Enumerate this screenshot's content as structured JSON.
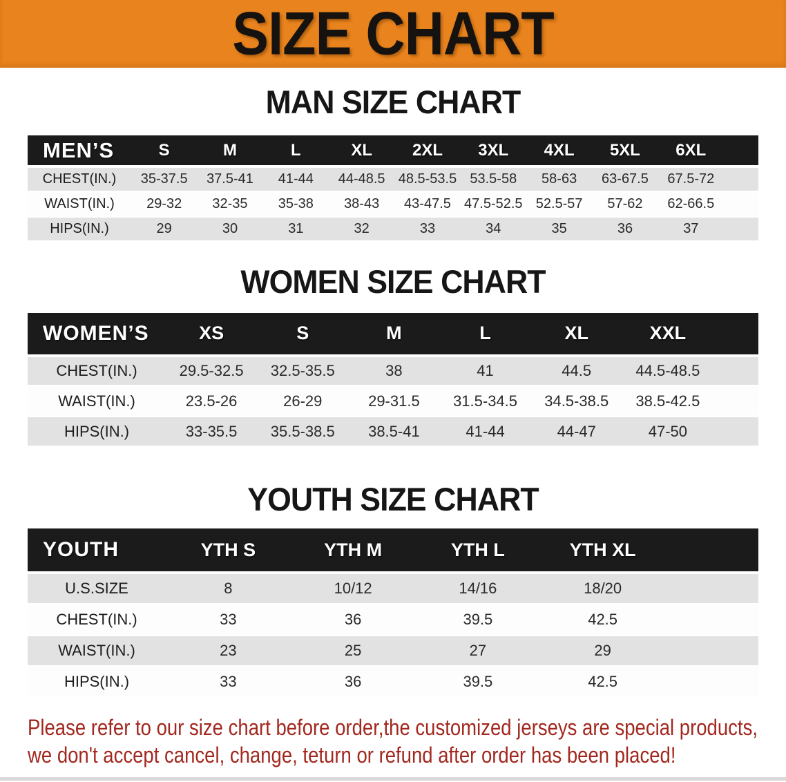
{
  "colors": {
    "banner_bg": "#E8831D",
    "table_header_bg": "#1B1B1B",
    "row_alt_gray": "#E2E2E2",
    "notice_red": "#A2281F"
  },
  "banner": {
    "title": "SIZE CHART"
  },
  "sections": {
    "men_heading": "MAN SIZE CHART",
    "women_heading": "WOMEN SIZE CHART",
    "youth_heading": "YOUTH SIZE CHART"
  },
  "tables": [
    {
      "id": "men",
      "header_label": "MEN’S",
      "columns": [
        "S",
        "M",
        "L",
        "XL",
        "2XL",
        "3XL",
        "4XL",
        "5XL",
        "6XL"
      ],
      "rows": [
        {
          "label": "CHEST(IN.)",
          "values": [
            "35-37.5",
            "37.5-41",
            "41-44",
            "44-48.5",
            "48.5-53.5",
            "53.5-58",
            "58-63",
            "63-67.5",
            "67.5-72"
          ]
        },
        {
          "label": "WAIST(IN.)",
          "values": [
            "29-32",
            "32-35",
            "35-38",
            "38-43",
            "43-47.5",
            "47.5-52.5",
            "52.5-57",
            "57-62",
            "62-66.5"
          ]
        },
        {
          "label": "HIPS(IN.)",
          "values": [
            "29",
            "30",
            "31",
            "32",
            "33",
            "34",
            "35",
            "36",
            "37"
          ]
        }
      ]
    },
    {
      "id": "women",
      "header_label": "WOMEN’S",
      "columns": [
        "XS",
        "S",
        "M",
        "L",
        "XL",
        "XXL"
      ],
      "rows": [
        {
          "label": "CHEST(IN.)",
          "values": [
            "29.5-32.5",
            "32.5-35.5",
            "38",
            "41",
            "44.5",
            "44.5-48.5"
          ]
        },
        {
          "label": "WAIST(IN.)",
          "values": [
            "23.5-26",
            "26-29",
            "29-31.5",
            "31.5-34.5",
            "34.5-38.5",
            "38.5-42.5"
          ]
        },
        {
          "label": "HIPS(IN.)",
          "values": [
            "33-35.5",
            "35.5-38.5",
            "38.5-41",
            "41-44",
            "44-47",
            "47-50"
          ]
        }
      ]
    },
    {
      "id": "youth",
      "header_label": "YOUTH",
      "columns": [
        "YTH S",
        "YTH M",
        "YTH L",
        "YTH XL"
      ],
      "rows": [
        {
          "label": "U.S.SIZE",
          "values": [
            "8",
            "10/12",
            "14/16",
            "18/20"
          ]
        },
        {
          "label": "CHEST(IN.)",
          "values": [
            "33",
            "36",
            "39.5",
            "42.5"
          ]
        },
        {
          "label": "WAIST(IN.)",
          "values": [
            "23",
            "25",
            "27",
            "29"
          ]
        },
        {
          "label": "HIPS(IN.)",
          "values": [
            "33",
            "36",
            "39.5",
            "42.5"
          ]
        }
      ]
    }
  ],
  "notice": {
    "line1": "Please refer to our size chart before order,the customized jerseys are special products,",
    "line2": "we don't accept cancel, change, teturn or refund after order has been placed!"
  }
}
